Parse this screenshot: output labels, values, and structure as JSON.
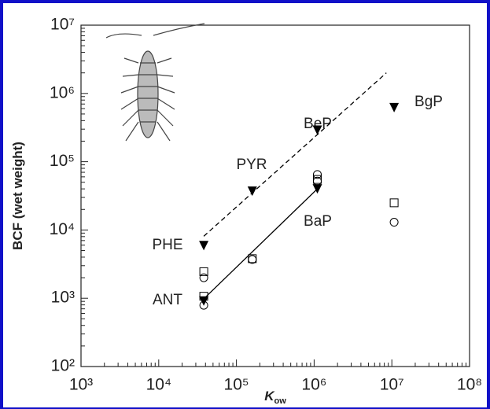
{
  "chart_data": {
    "type": "scatter",
    "ylabel": "BCF (wet weight)",
    "xlabel": {
      "main": "K",
      "sub": "ow"
    },
    "log_x": true,
    "log_y": true,
    "xlim": [
      1000,
      100000000
    ],
    "xticks": [
      {
        "value": 1000,
        "label": "10³"
      },
      {
        "value": 10000,
        "label": "10⁴"
      },
      {
        "value": 100000,
        "label": "10⁵"
      },
      {
        "value": 1000000,
        "label": "10⁶"
      },
      {
        "value": 10000000,
        "label": "10⁷"
      },
      {
        "value": 100000000,
        "label": "10⁸"
      }
    ],
    "ylim": [
      100,
      10000000
    ],
    "yticks": [
      {
        "value": 100,
        "label": "10²"
      },
      {
        "value": 1000,
        "label": "10³"
      },
      {
        "value": 10000,
        "label": "10⁴"
      },
      {
        "value": 100000,
        "label": "10⁵"
      },
      {
        "value": 1000000,
        "label": "10⁶"
      },
      {
        "value": 10000000,
        "label": "10⁷"
      }
    ],
    "annotations": [
      "PHE",
      "ANT",
      "PYR",
      "BeP",
      "BaP",
      "BgP"
    ],
    "series": [
      {
        "marker": "triangle-down",
        "color": "#000000",
        "x": [
          38000,
          38000,
          160000,
          1100000,
          1100000,
          10700000
        ],
        "values": [
          5900,
          910,
          37000,
          290000,
          40000,
          620000
        ]
      },
      {
        "marker": "square",
        "color": "#000000",
        "x": [
          38000,
          38000,
          160000,
          1100000,
          10700000
        ],
        "values": [
          2450,
          1070,
          3800,
          55000,
          25000
        ]
      },
      {
        "marker": "circle",
        "color": "#000000",
        "x": [
          38000,
          38000,
          160000,
          1100000,
          1100000,
          10700000
        ],
        "values": [
          2000,
          790,
          3700,
          65000,
          52000,
          13000
        ]
      },
      {
        "marker": "dashed-line",
        "color": "#000000",
        "x": [
          38000,
          8500000
        ],
        "values": [
          8100,
          2000000
        ]
      },
      {
        "marker": "solid-line",
        "color": "#000000",
        "x": [
          38000,
          1100000
        ],
        "values": [
          980,
          40000
        ]
      }
    ]
  }
}
